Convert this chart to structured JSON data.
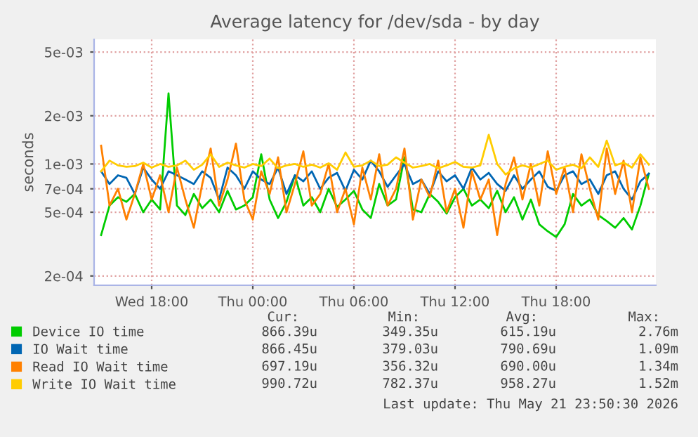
{
  "chart_data": {
    "type": "line",
    "title": "Average latency for /dev/sda - by day",
    "ylabel": "seconds",
    "x": [
      "2026-05-20T15:00",
      "2026-05-20T15:30",
      "2026-05-20T16:00",
      "2026-05-20T16:30",
      "2026-05-20T17:00",
      "2026-05-20T17:30",
      "2026-05-20T18:00",
      "2026-05-20T18:30",
      "2026-05-20T19:00",
      "2026-05-20T19:30",
      "2026-05-20T20:00",
      "2026-05-20T20:30",
      "2026-05-20T21:00",
      "2026-05-20T21:30",
      "2026-05-20T22:00",
      "2026-05-20T22:30",
      "2026-05-20T23:00",
      "2026-05-20T23:30",
      "2026-05-21T00:00",
      "2026-05-21T00:30",
      "2026-05-21T01:00",
      "2026-05-21T01:30",
      "2026-05-21T02:00",
      "2026-05-21T02:30",
      "2026-05-21T03:00",
      "2026-05-21T03:30",
      "2026-05-21T04:00",
      "2026-05-21T04:30",
      "2026-05-21T05:00",
      "2026-05-21T05:30",
      "2026-05-21T06:00",
      "2026-05-21T06:30",
      "2026-05-21T07:00",
      "2026-05-21T07:30",
      "2026-05-21T08:00",
      "2026-05-21T08:30",
      "2026-05-21T09:00",
      "2026-05-21T09:30",
      "2026-05-21T10:00",
      "2026-05-21T10:30",
      "2026-05-21T11:00",
      "2026-05-21T11:30",
      "2026-05-21T12:00",
      "2026-05-21T12:30",
      "2026-05-21T13:00",
      "2026-05-21T13:30",
      "2026-05-21T14:00",
      "2026-05-21T14:30",
      "2026-05-21T15:00",
      "2026-05-21T15:30",
      "2026-05-21T16:00",
      "2026-05-21T16:30",
      "2026-05-21T17:00",
      "2026-05-21T17:30",
      "2026-05-21T18:00",
      "2026-05-21T18:30",
      "2026-05-21T19:00",
      "2026-05-21T19:30",
      "2026-05-21T20:00",
      "2026-05-21T20:30",
      "2026-05-21T21:00",
      "2026-05-21T21:30",
      "2026-05-21T22:00",
      "2026-05-21T22:30",
      "2026-05-21T23:00",
      "2026-05-21T23:30"
    ],
    "series": [
      {
        "name": "Device IO time",
        "color": "#00cc00",
        "values": [
          0.00036,
          0.00055,
          0.00062,
          0.00058,
          0.00065,
          0.0005,
          0.0006,
          0.00052,
          0.00276,
          0.00055,
          0.00048,
          0.00065,
          0.00053,
          0.0006,
          0.0005,
          0.00068,
          0.00052,
          0.00055,
          0.00062,
          0.00115,
          0.0006,
          0.00046,
          0.00058,
          0.00085,
          0.00055,
          0.00062,
          0.0005,
          0.0007,
          0.00054,
          0.0006,
          0.00068,
          0.00052,
          0.00046,
          0.00075,
          0.00055,
          0.0006,
          0.0011,
          0.00052,
          0.0005,
          0.00065,
          0.00058,
          0.00049,
          0.00062,
          0.0007,
          0.00055,
          0.0006,
          0.00053,
          0.00068,
          0.0005,
          0.00062,
          0.00045,
          0.0006,
          0.00042,
          0.00038,
          0.00035,
          0.00042,
          0.00065,
          0.00055,
          0.0006,
          0.00048,
          0.00044,
          0.0004,
          0.00046,
          0.00039,
          0.00055,
          0.00087
        ]
      },
      {
        "name": "IO Wait time",
        "color": "#0066b3",
        "values": [
          0.0009,
          0.00075,
          0.00085,
          0.00082,
          0.00065,
          0.00095,
          0.0008,
          0.0007,
          0.0009,
          0.00085,
          0.0008,
          0.00075,
          0.0009,
          0.00082,
          0.0006,
          0.00095,
          0.00085,
          0.0007,
          0.0009,
          0.0008,
          0.00075,
          0.00095,
          0.00065,
          0.00085,
          0.00078,
          0.0009,
          0.0007,
          0.00082,
          0.00088,
          0.00068,
          0.00092,
          0.0008,
          0.00105,
          0.0009,
          0.00072,
          0.00085,
          0.001,
          0.00075,
          0.0008,
          0.00065,
          0.0009,
          0.00078,
          0.00085,
          0.0007,
          0.00095,
          0.0008,
          0.00088,
          0.00075,
          0.00068,
          0.00085,
          0.0007,
          0.0008,
          0.0009,
          0.00072,
          0.00068,
          0.00085,
          0.0009,
          0.00075,
          0.0008,
          0.00065,
          0.00085,
          0.0009,
          0.0007,
          0.0006,
          0.00078,
          0.00087
        ]
      },
      {
        "name": "Read IO Wait time",
        "color": "#ff8000",
        "values": [
          0.0013,
          0.00055,
          0.0007,
          0.00045,
          0.00065,
          0.001,
          0.0006,
          0.00085,
          0.0005,
          0.00095,
          0.0006,
          0.0004,
          0.00075,
          0.00125,
          0.00055,
          0.0008,
          0.00134,
          0.0006,
          0.00045,
          0.0009,
          0.00065,
          0.0011,
          0.0005,
          0.00075,
          0.0012,
          0.00055,
          0.00065,
          0.001,
          0.0005,
          0.0007,
          0.00042,
          0.00095,
          0.0006,
          0.00115,
          0.00055,
          0.0007,
          0.00125,
          0.00045,
          0.0008,
          0.00062,
          0.00105,
          0.0005,
          0.0007,
          0.0004,
          0.0009,
          0.0006,
          0.0008,
          0.00036,
          0.00075,
          0.0011,
          0.0006,
          0.001,
          0.00055,
          0.0012,
          0.00065,
          0.00095,
          0.0005,
          0.00115,
          0.0007,
          0.00045,
          0.00125,
          0.00065,
          0.00105,
          0.0005,
          0.0011,
          0.0007
        ]
      },
      {
        "name": "Write IO Wait time",
        "color": "#ffcc00",
        "values": [
          0.0009,
          0.00105,
          0.00098,
          0.00096,
          0.00097,
          0.00102,
          0.00095,
          0.001,
          0.00096,
          0.00098,
          0.00105,
          0.00092,
          0.00099,
          0.00115,
          0.00096,
          0.00102,
          0.00098,
          0.00095,
          0.001,
          0.00097,
          0.00108,
          0.00094,
          0.00098,
          0.001,
          0.00096,
          0.00099,
          0.00095,
          0.00101,
          0.00092,
          0.00118,
          0.00096,
          0.00098,
          0.00105,
          0.00097,
          0.00099,
          0.0011,
          0.00102,
          0.00095,
          0.00097,
          0.001,
          0.00094,
          0.00098,
          0.00103,
          0.00096,
          0.00095,
          0.00098,
          0.00152,
          0.001,
          0.00086,
          0.00094,
          0.00098,
          0.00095,
          0.001,
          0.00105,
          0.00092,
          0.00096,
          0.00099,
          0.00094,
          0.0011,
          0.00096,
          0.0014,
          0.00098,
          0.00102,
          0.00095,
          0.00115,
          0.00099
        ]
      }
    ],
    "log": true,
    "ylim": [
      0.000175,
      0.006
    ],
    "yticks": [
      {
        "value": 0.0002,
        "label": "2e-04"
      },
      {
        "value": 0.0005,
        "label": "5e-04"
      },
      {
        "value": 0.0007,
        "label": "7e-04"
      },
      {
        "value": 0.001,
        "label": "1e-03"
      },
      {
        "value": 0.002,
        "label": "2e-03"
      },
      {
        "value": 0.005,
        "label": "5e-03"
      }
    ],
    "xlim": [
      "2026-05-20T14:35",
      "2026-05-21T23:55"
    ],
    "xticks": [
      {
        "value": "2026-05-20T18:00",
        "label": "Wed 18:00"
      },
      {
        "value": "2026-05-21T00:00",
        "label": "Thu 00:00"
      },
      {
        "value": "2026-05-21T06:00",
        "label": "Thu 06:00"
      },
      {
        "value": "2026-05-21T12:00",
        "label": "Thu 12:00"
      },
      {
        "value": "2026-05-21T18:00",
        "label": "Thu 18:00"
      }
    ],
    "grid": true,
    "legend": "bottom",
    "annotations": [
      "Cur:",
      "Min:",
      "Avg:",
      "Max:",
      "866.39u",
      "349.35u",
      "615.19u",
      "2.76m",
      "866.45u",
      "379.03u",
      "790.69u",
      "1.09m",
      "697.19u",
      "356.32u",
      "690.00u",
      "1.34m",
      "990.72u",
      "782.37u",
      "958.27u",
      "1.52m",
      "Last update: Thu May 21 23:50:30 2026"
    ]
  }
}
